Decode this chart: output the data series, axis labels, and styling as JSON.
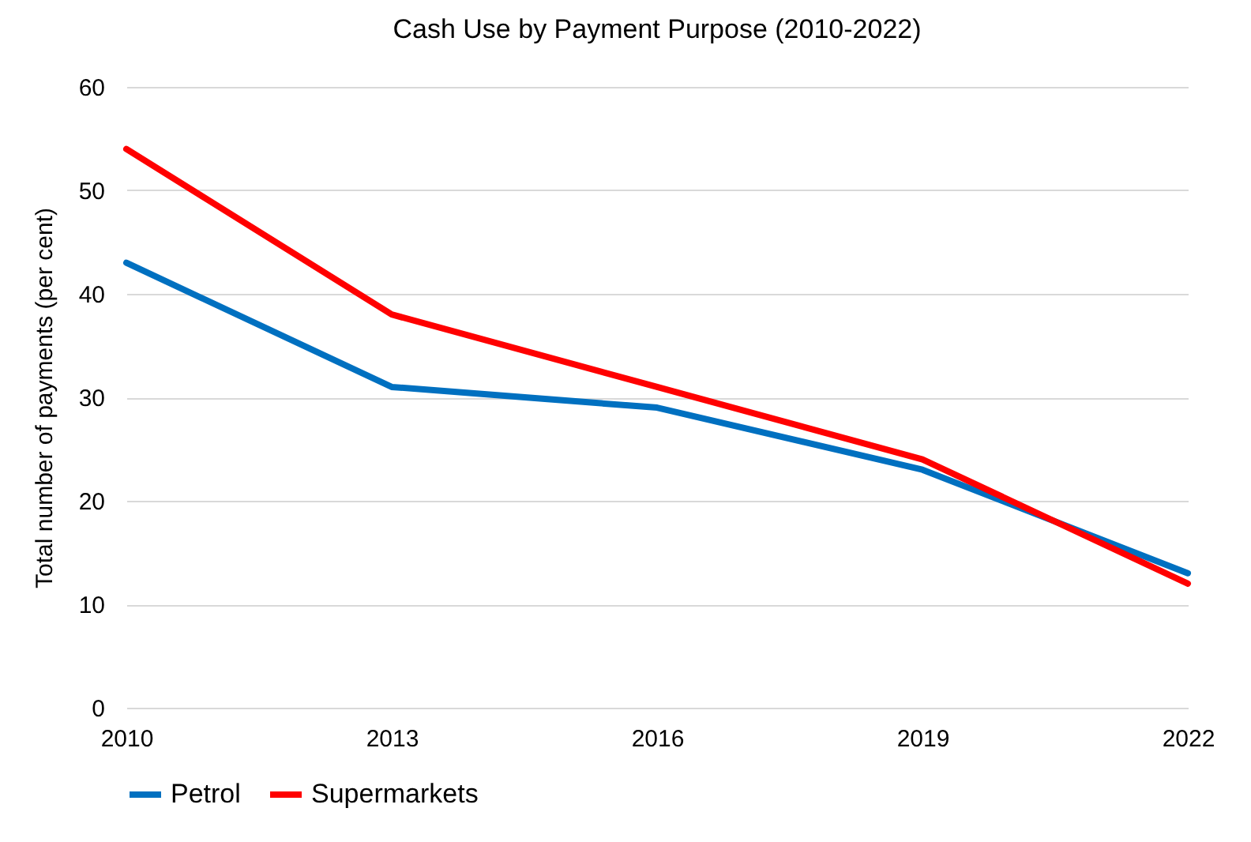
{
  "chart_data": {
    "type": "line",
    "title": "Cash Use by Payment Purpose (2010-2022)",
    "ylabel": "Total number of payments (per cent)",
    "x": [
      2010,
      2013,
      2016,
      2019,
      2022
    ],
    "series": [
      {
        "name": "Petrol",
        "color": "#0070c0",
        "values": [
          43,
          31,
          29,
          23,
          13
        ]
      },
      {
        "name": "Supermarkets",
        "color": "#ff0000",
        "values": [
          54,
          38,
          31,
          24,
          12
        ]
      }
    ],
    "xlim": [
      2010,
      2022
    ],
    "xticks": [
      2010,
      2013,
      2016,
      2019,
      2022
    ],
    "ylim": [
      0,
      60
    ],
    "yticks": [
      0,
      10,
      20,
      30,
      40,
      50,
      60
    ],
    "grid": "y",
    "legend": "bottom",
    "line_style": "solid",
    "marker": "none"
  }
}
